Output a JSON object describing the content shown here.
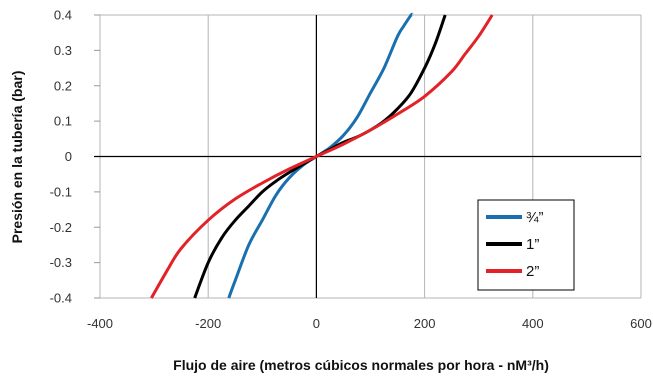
{
  "chart_data": {
    "type": "line",
    "title": "",
    "xlabel": "Flujo de aire (metros cúbicos normales por hora - nM³/h)",
    "ylabel": "Presión en la tubería (bar)",
    "xlim": [
      -400,
      600
    ],
    "ylim": [
      -0.4,
      0.4
    ],
    "x_ticks": [
      -400,
      -200,
      0,
      200,
      400,
      600
    ],
    "x_tick_labels": [
      "-400",
      "-200",
      "0",
      "200",
      "400",
      "600"
    ],
    "y_ticks": [
      -0.4,
      -0.3,
      -0.2,
      -0.1,
      0,
      0.1,
      0.2,
      0.3,
      0.4
    ],
    "y_tick_labels": [
      "-0.4",
      "-0.3",
      "-0.2",
      "-0.1",
      "0",
      "0.1",
      "0.2",
      "0.3",
      "0.4"
    ],
    "grid": "vertical",
    "legend_position": "bottom-right",
    "series": [
      {
        "name": "¾”",
        "color": "#1a6faf",
        "x": [
          -162,
          -150,
          -125,
          -100,
          -75,
          -50,
          -25,
          0,
          25,
          50,
          75,
          100,
          125,
          150,
          162,
          175,
          177
        ],
        "y": [
          -0.4,
          -0.35,
          -0.25,
          -0.18,
          -0.11,
          -0.06,
          -0.025,
          0,
          0.025,
          0.06,
          0.11,
          0.18,
          0.25,
          0.34,
          0.37,
          0.4,
          0.4
        ]
      },
      {
        "name": "1”",
        "color": "#000000",
        "x": [
          -225,
          -200,
          -175,
          -150,
          -125,
          -100,
          -75,
          -50,
          -25,
          0,
          25,
          50,
          75,
          100,
          125,
          150,
          175,
          200,
          220,
          238
        ],
        "y": [
          -0.4,
          -0.3,
          -0.23,
          -0.18,
          -0.14,
          -0.1,
          -0.07,
          -0.045,
          -0.022,
          0,
          0.02,
          0.04,
          0.055,
          0.075,
          0.1,
          0.135,
          0.18,
          0.25,
          0.32,
          0.4
        ]
      },
      {
        "name": "2”",
        "color": "#e32227",
        "x": [
          -305,
          -275,
          -250,
          -200,
          -150,
          -100,
          -50,
          0,
          50,
          100,
          150,
          200,
          250,
          275,
          300,
          325
        ],
        "y": [
          -0.4,
          -0.32,
          -0.26,
          -0.18,
          -0.12,
          -0.075,
          -0.035,
          0,
          0.035,
          0.075,
          0.12,
          0.17,
          0.24,
          0.29,
          0.34,
          0.4
        ]
      }
    ]
  }
}
